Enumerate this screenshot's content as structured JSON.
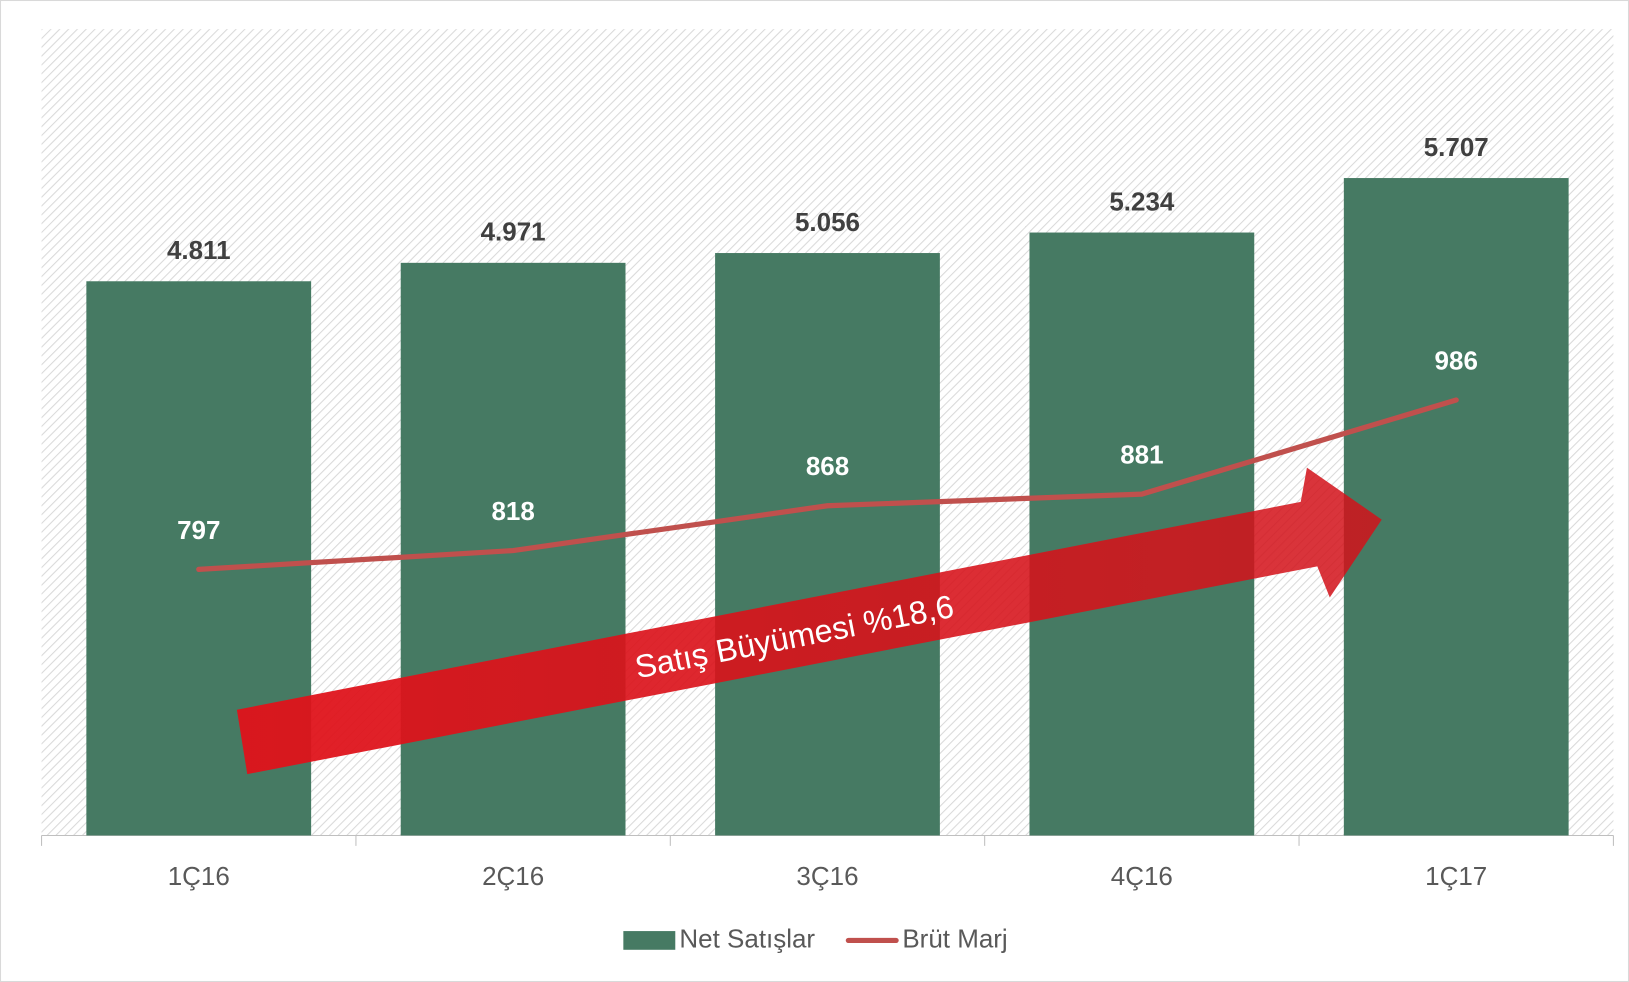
{
  "chart_data": {
    "type": "bar",
    "categories": [
      "1Ç16",
      "2Ç16",
      "3Ç16",
      "4Ç16",
      "1Ç17"
    ],
    "ylim": [
      0,
      7000
    ],
    "y2lim": [
      500,
      1400
    ],
    "legend": "bottom",
    "series": [
      {
        "name": "Net Satışlar",
        "type": "bar",
        "color": "#467a63",
        "values": [
          4811,
          4971,
          5056,
          5234,
          5707
        ],
        "value_labels": [
          "4.811",
          "4.971",
          "5.056",
          "5.234",
          "5.707"
        ]
      },
      {
        "name": "Brüt Marj",
        "type": "line",
        "axis": "y2",
        "color": "#c0504d",
        "values": [
          797,
          818,
          868,
          881,
          986
        ]
      }
    ],
    "annotations": [
      "Satış Büyümesi %18,6"
    ]
  }
}
